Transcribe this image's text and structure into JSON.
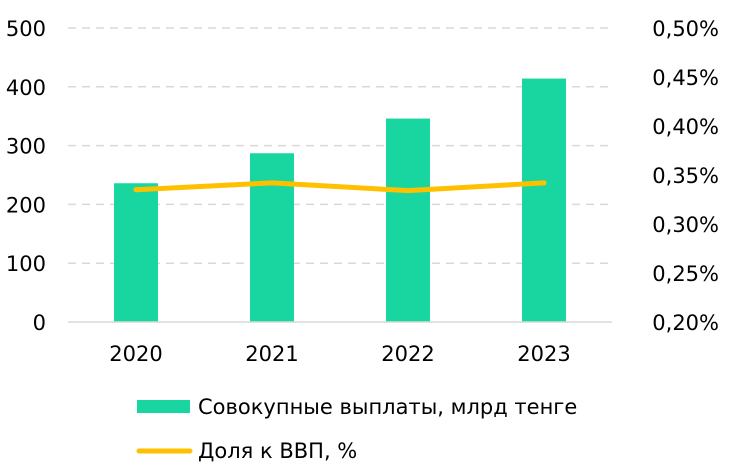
{
  "chart_data": {
    "type": "bar",
    "categories": [
      "2020",
      "2021",
      "2022",
      "2023"
    ],
    "series": [
      {
        "name": "Совокупные выплаты, млрд тенге",
        "type": "bar",
        "axis": "left",
        "color": "#19D6A0",
        "values": [
          236,
          287,
          346,
          414
        ]
      },
      {
        "name": "Доля к ВВП, %",
        "type": "line",
        "axis": "right",
        "color": "#FFC000",
        "values": [
          0.335,
          0.342,
          0.334,
          0.342
        ]
      }
    ],
    "y_left": {
      "min": 0,
      "max": 500,
      "ticks": [
        0,
        100,
        200,
        300,
        400,
        500
      ],
      "tick_labels": [
        "0",
        "100",
        "200",
        "300",
        "400",
        "500"
      ]
    },
    "y_right": {
      "min": 0.2,
      "max": 0.5,
      "ticks": [
        0.2,
        0.25,
        0.3,
        0.35,
        0.4,
        0.45,
        0.5
      ],
      "tick_labels": [
        "0,20%",
        "0,25%",
        "0,30%",
        "0,35%",
        "0,40%",
        "0,45%",
        "0,50%"
      ]
    },
    "grid": true,
    "legend_position": "bottom",
    "title": "",
    "xlabel": "",
    "ylabel": ""
  },
  "legend": [
    {
      "label": "Совокупные выплаты, млрд тенге",
      "kind": "bar",
      "color": "#19D6A0"
    },
    {
      "label": "Доля к ВВП, %",
      "kind": "line",
      "color": "#FFC000"
    }
  ]
}
